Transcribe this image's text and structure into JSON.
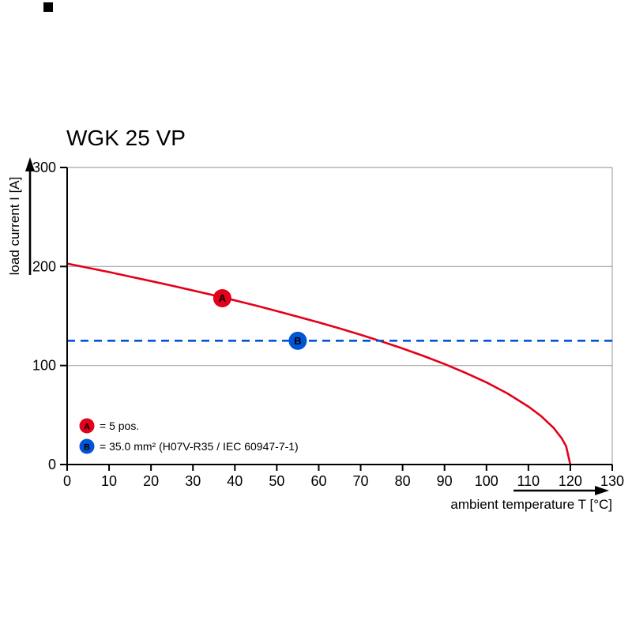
{
  "chart_data": {
    "type": "line",
    "title": "WGK 25 VP",
    "xlabel": "ambient temperature T [°C]",
    "ylabel": "load current I [A]",
    "xlim": [
      0,
      130
    ],
    "ylim": [
      0,
      300
    ],
    "x_ticks": [
      0,
      10,
      20,
      30,
      40,
      50,
      60,
      70,
      80,
      90,
      100,
      110,
      120,
      130
    ],
    "y_ticks": [
      0,
      100,
      200,
      300
    ],
    "gridlines": {
      "horizontal": [
        100,
        200,
        300
      ]
    },
    "legend_position": "inside bottom-left",
    "series": [
      {
        "name": "A",
        "label": "= 5 pos.",
        "color": "#e2001a",
        "style": "solid",
        "points": [
          [
            0,
            203
          ],
          [
            5,
            198.7
          ],
          [
            10,
            194.4
          ],
          [
            15,
            189.8
          ],
          [
            20,
            185.3
          ],
          [
            25,
            180.6
          ],
          [
            30,
            175.8
          ],
          [
            35,
            170.9
          ],
          [
            40,
            165.8
          ],
          [
            45,
            160.5
          ],
          [
            50,
            155.0
          ],
          [
            55,
            149.3
          ],
          [
            60,
            143.5
          ],
          [
            65,
            137.4
          ],
          [
            70,
            131.0
          ],
          [
            75,
            124.3
          ],
          [
            80,
            117.2
          ],
          [
            85,
            109.6
          ],
          [
            90,
            101.5
          ],
          [
            95,
            92.6
          ],
          [
            100,
            82.9
          ],
          [
            105,
            71.8
          ],
          [
            110,
            58.6
          ],
          [
            113,
            49.0
          ],
          [
            116,
            37.1
          ],
          [
            118,
            26.2
          ],
          [
            119,
            18.5
          ],
          [
            120,
            0
          ]
        ],
        "marker": {
          "x": 37,
          "y": 168,
          "label": "A"
        }
      },
      {
        "name": "B",
        "label": "= 35.0 mm² (H07V-R35 / IEC 60947-7-1)",
        "color": "#0054d6",
        "style": "dashed",
        "points": [
          [
            0,
            125
          ],
          [
            130,
            125
          ]
        ],
        "marker": {
          "x": 55,
          "y": 125,
          "label": "B"
        }
      }
    ],
    "legend": {
      "entries": [
        {
          "badge": "A",
          "text": "= 5 pos."
        },
        {
          "badge": "B",
          "text": "= 35.0 mm² (H07V-R35 / IEC 60947-7-1)"
        }
      ]
    }
  }
}
